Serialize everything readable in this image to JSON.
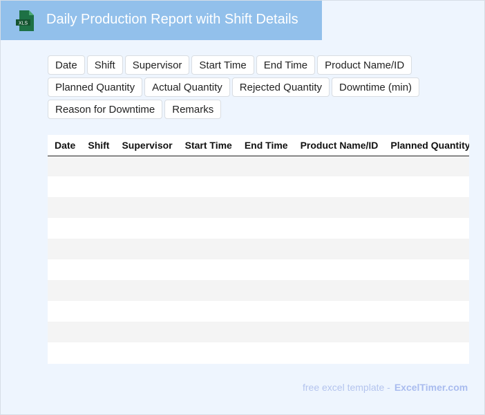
{
  "header": {
    "title": "Daily Production Report with Shift Details",
    "icon": "xls-file-icon",
    "icon_label": "XLS",
    "bg_color": "#92c0eb"
  },
  "fields": [
    "Date",
    "Shift",
    "Supervisor",
    "Start Time",
    "End Time",
    "Product Name/ID",
    "Planned Quantity",
    "Actual Quantity",
    "Rejected Quantity",
    "Downtime (min)",
    "Reason for Downtime",
    "Remarks"
  ],
  "table": {
    "columns": [
      "Date",
      "Shift",
      "Supervisor",
      "Start Time",
      "End Time",
      "Product Name/ID",
      "Planned Quantity",
      "Actual Quantity",
      "Rejected Quantity",
      "Downtime (min)",
      "Reason for Downtime",
      "Remarks"
    ],
    "row_count": 10
  },
  "footer": {
    "text": "free excel template -",
    "brand": "ExcelTimer.com"
  }
}
